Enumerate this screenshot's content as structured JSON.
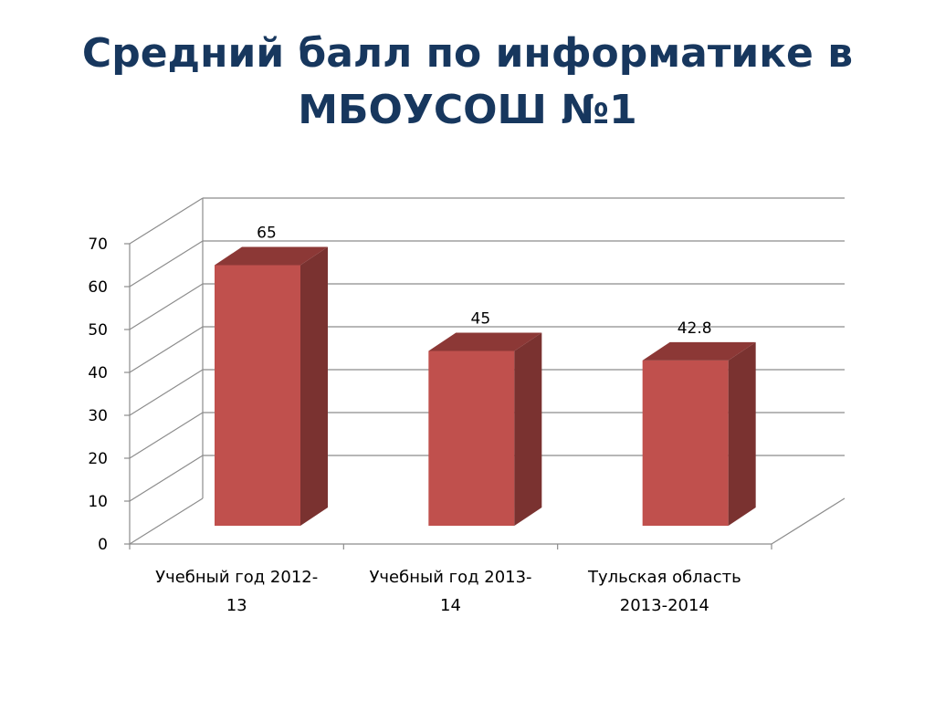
{
  "slide": {
    "title": "Средний балл по информатике в\nМБОУСОШ №1"
  },
  "chart_data": {
    "type": "bar",
    "style": "3d-column",
    "categories": [
      [
        "Учебный год 2012-",
        "13"
      ],
      [
        "Учебный год 2013-",
        "14"
      ],
      [
        "Тульская область",
        "2013-2014"
      ]
    ],
    "values": [
      65,
      45,
      42.8
    ],
    "data_labels": [
      "65",
      "45",
      "42.8"
    ],
    "ylim": [
      0,
      70
    ],
    "yticks": [
      0,
      10,
      20,
      30,
      40,
      50,
      60,
      70
    ],
    "grid": true,
    "legend": "none",
    "colors": {
      "bar_front": "#c0504d",
      "bar_top": "#8c3836",
      "bar_side": "#7a3230",
      "gridline": "#8c8c8c",
      "axis": "#8c8c8c",
      "title": "#17375e"
    }
  }
}
